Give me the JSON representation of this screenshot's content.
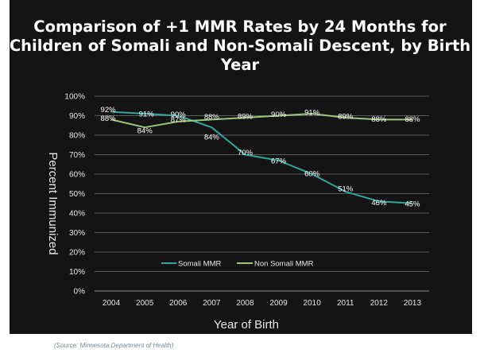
{
  "chart_data": {
    "type": "line",
    "title_lines": [
      "Comparison of +1 MMR Rates by 24 Months for",
      "Children of Somali and Non-Somali Descent, by Birth",
      "Year"
    ],
    "xlabel": "Year of Birth",
    "ylabel": "Percent Immunized",
    "categories": [
      "2004",
      "2005",
      "2006",
      "2007",
      "2008",
      "2009",
      "2010",
      "2011",
      "2012",
      "2013"
    ],
    "ylim": [
      0,
      100
    ],
    "yticks": [
      "0%",
      "10%",
      "20%",
      "30%",
      "40%",
      "50%",
      "60%",
      "70%",
      "80%",
      "90%",
      "100%"
    ],
    "grid": true,
    "legend_position": "bottom-center",
    "series": [
      {
        "name": "Somali MMR",
        "color": "#2fa6a0",
        "values": [
          92,
          91,
          90,
          84,
          70,
          67,
          60,
          51,
          46,
          45
        ],
        "labels": [
          "92%",
          "91%",
          "90%",
          "84%",
          "70%",
          "67%",
          "60%",
          "51%",
          "46%",
          "45%"
        ]
      },
      {
        "name": "Non Somali MMR",
        "color": "#9bc57a",
        "values": [
          88,
          84,
          87,
          88,
          89,
          90,
          91,
          89,
          88,
          88
        ],
        "labels": [
          "88%",
          "84%",
          "87%",
          "88%",
          "89%",
          "90%",
          "91%",
          "89%",
          "88%",
          "88%"
        ]
      }
    ]
  },
  "source": "(Source: Minnesota Department of Health)",
  "colors": {
    "background": "#141414",
    "page": "#ffffff",
    "grid": "#5a5a5a",
    "text": "#e6e6e6"
  }
}
